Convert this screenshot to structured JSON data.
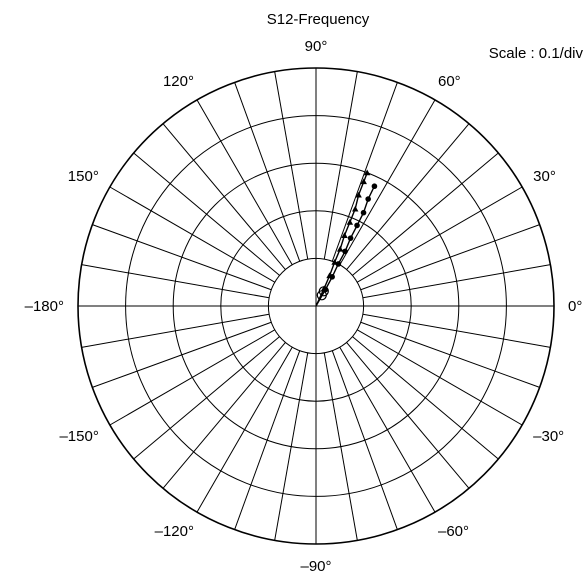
{
  "chart_data": {
    "type": "polar",
    "title": "S12-Frequency",
    "scale_label": "Scale : 0.1/div",
    "radial_divisions": 5,
    "spoke_step_deg": 10,
    "angle_labels": [
      {
        "deg": 0,
        "text": "0°"
      },
      {
        "deg": 30,
        "text": "30°"
      },
      {
        "deg": 60,
        "text": "60°"
      },
      {
        "deg": 90,
        "text": "90°"
      },
      {
        "deg": 120,
        "text": "120°"
      },
      {
        "deg": 150,
        "text": "150°"
      },
      {
        "deg": 180,
        "text": "–180°"
      },
      {
        "deg": -150,
        "text": "–150°"
      },
      {
        "deg": -120,
        "text": "–120°"
      },
      {
        "deg": -90,
        "text": "–90°"
      },
      {
        "deg": -60,
        "text": "–60°"
      },
      {
        "deg": -30,
        "text": "–30°"
      }
    ],
    "series": [
      {
        "marker": "triangle",
        "points": [
          {
            "mag": 0.04,
            "angle": 65
          },
          {
            "mag": 0.07,
            "angle": 66
          },
          {
            "mag": 0.1,
            "angle": 67
          },
          {
            "mag": 0.13,
            "angle": 67
          },
          {
            "mag": 0.16,
            "angle": 68
          },
          {
            "mag": 0.19,
            "angle": 68
          },
          {
            "mag": 0.22,
            "angle": 68
          },
          {
            "mag": 0.25,
            "angle": 69
          },
          {
            "mag": 0.28,
            "angle": 69
          },
          {
            "mag": 0.3,
            "angle": 69
          }
        ]
      },
      {
        "marker": "circle",
        "points": [
          {
            "mag": 0.04,
            "angle": 60
          },
          {
            "mag": 0.07,
            "angle": 61
          },
          {
            "mag": 0.1,
            "angle": 62
          },
          {
            "mag": 0.13,
            "angle": 62
          },
          {
            "mag": 0.16,
            "angle": 63
          },
          {
            "mag": 0.19,
            "angle": 63
          },
          {
            "mag": 0.22,
            "angle": 63
          },
          {
            "mag": 0.25,
            "angle": 64
          },
          {
            "mag": 0.28,
            "angle": 64
          }
        ]
      }
    ]
  }
}
